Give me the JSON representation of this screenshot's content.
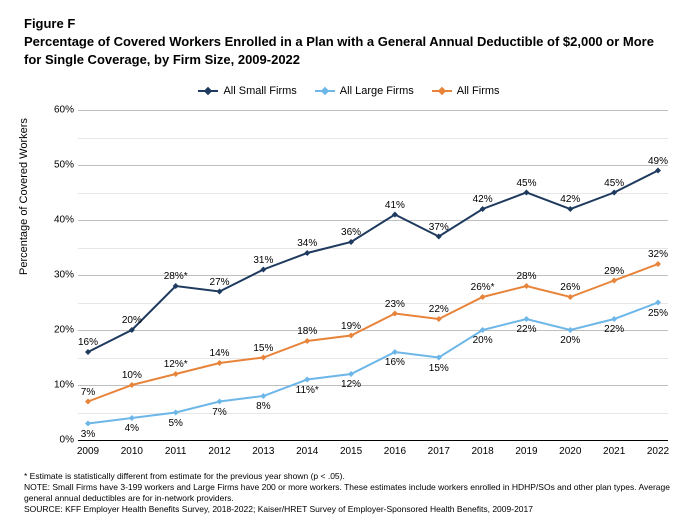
{
  "figure_label": "Figure F",
  "title": "Percentage of Covered Workers Enrolled in a Plan with a General Annual Deductible of $2,000 or More for Single Coverage, by Firm Size, 2009-2022",
  "chart": {
    "type": "line",
    "y_axis_label": "Percentage of Covered Workers",
    "ylim": [
      0,
      60
    ],
    "ytick_step": 10,
    "ytick_format_suffix": "%",
    "x_categories": [
      "2009",
      "2010",
      "2011",
      "2012",
      "2013",
      "2014",
      "2015",
      "2016",
      "2017",
      "2018",
      "2019",
      "2020",
      "2021",
      "2022"
    ],
    "grid_color_major": "#bfbfbf",
    "grid_color_minor": "#e6e6e6",
    "y_minor_step": 5,
    "axis_color": "#000000",
    "background_color": "#ffffff",
    "font_family": "Arial",
    "label_fontsize": 10,
    "title_fontsize": 13,
    "line_width": 2,
    "marker_size": 6,
    "marker_style": "diamond",
    "series": [
      {
        "name": "All Small Firms",
        "color": "#1f3a5f",
        "values": [
          16,
          20,
          28,
          27,
          31,
          34,
          36,
          41,
          37,
          42,
          45,
          42,
          45,
          49
        ],
        "label_above": true,
        "labels": [
          "16%",
          "20%",
          "28%*",
          "27%",
          "31%",
          "34%",
          "36%",
          "41%",
          "37%",
          "42%",
          "45%",
          "42%",
          "45%",
          "49%"
        ]
      },
      {
        "name": "All Large Firms",
        "color": "#6db6e8",
        "values": [
          3,
          4,
          5,
          7,
          8,
          11,
          12,
          16,
          15,
          20,
          22,
          20,
          22,
          25
        ],
        "label_above": false,
        "labels": [
          "3%",
          "4%",
          "5%",
          "7%",
          "8%",
          "11%*",
          "12%",
          "16%",
          "15%",
          "20%",
          "22%",
          "20%",
          "22%",
          "25%"
        ]
      },
      {
        "name": "All Firms",
        "color": "#e8833a",
        "values": [
          7,
          10,
          12,
          14,
          15,
          18,
          19,
          23,
          22,
          26,
          28,
          26,
          29,
          32
        ],
        "label_above": true,
        "labels": [
          "7%",
          "10%",
          "12%*",
          "14%",
          "15%",
          "18%",
          "19%",
          "23%",
          "22%",
          "26%*",
          "28%",
          "26%",
          "29%",
          "32%"
        ]
      }
    ]
  },
  "notes": {
    "line1": "* Estimate is statistically different from estimate for the previous year shown (p < .05).",
    "line2": "NOTE: Small Firms have 3-199 workers and Large Firms have 200 or more workers. These estimates include workers enrolled in HDHP/SOs and other plan types. Average general annual deductibles are for in-network providers.",
    "line3": "SOURCE: KFF Employer Health Benefits Survey, 2018-2022; Kaiser/HRET Survey of Employer-Sponsored Health Benefits, 2009-2017"
  }
}
